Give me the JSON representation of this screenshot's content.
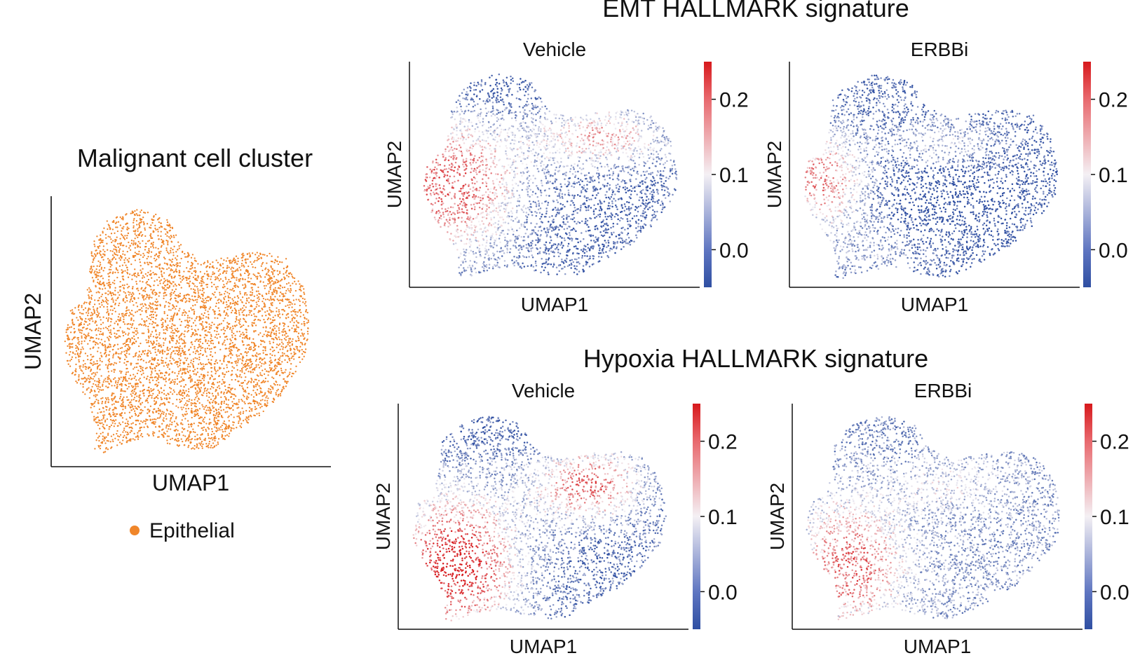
{
  "figure": {
    "left_panel": {
      "title": "Malignant cell cluster",
      "xlabel": "UMAP1",
      "ylabel": "UMAP2",
      "legend": [
        {
          "label": "Epithelial",
          "color": "#f0862a"
        }
      ]
    },
    "emt_title": "EMT HALLMARK signature",
    "hypoxia_title": "Hypoxia HALLMARK signature"
  },
  "chart_data": [
    {
      "type": "scatter",
      "title": "Malignant cell cluster",
      "xlabel": "UMAP1",
      "ylabel": "UMAP2",
      "color": "#f0862a",
      "legend": [
        "Epithelial"
      ],
      "grid": false
    },
    {
      "type": "scatter",
      "signature": "EMT HALLMARK signature",
      "title": "Vehicle",
      "xlabel": "UMAP1",
      "ylabel": "UMAP2",
      "colorbar": {
        "ticks": [
          "0.0",
          "0.1",
          "0.2"
        ],
        "range": [
          -0.05,
          0.25
        ],
        "cmap": [
          "#2f4fa2",
          "#ffffff",
          "#d7191c"
        ]
      },
      "pattern": "vehicle_emt"
    },
    {
      "type": "scatter",
      "signature": "EMT HALLMARK signature",
      "title": "ERBBi",
      "xlabel": "UMAP1",
      "ylabel": "UMAP2",
      "colorbar": {
        "ticks": [
          "0.0",
          "0.1",
          "0.2"
        ],
        "range": [
          -0.05,
          0.25
        ],
        "cmap": [
          "#2f4fa2",
          "#ffffff",
          "#d7191c"
        ]
      },
      "pattern": "erbbi_emt"
    },
    {
      "type": "scatter",
      "signature": "Hypoxia HALLMARK signature",
      "title": "Vehicle",
      "xlabel": "UMAP1",
      "ylabel": "UMAP2",
      "colorbar": {
        "ticks": [
          "0.0",
          "0.1",
          "0.2"
        ],
        "range": [
          -0.05,
          0.25
        ],
        "cmap": [
          "#2f4fa2",
          "#ffffff",
          "#d7191c"
        ]
      },
      "pattern": "vehicle_hyp"
    },
    {
      "type": "scatter",
      "signature": "Hypoxia HALLMARK signature",
      "title": "ERBBi",
      "xlabel": "UMAP1",
      "ylabel": "UMAP2",
      "colorbar": {
        "ticks": [
          "0.0",
          "0.1",
          "0.2"
        ],
        "range": [
          -0.05,
          0.25
        ],
        "cmap": [
          "#2f4fa2",
          "#ffffff",
          "#d7191c"
        ]
      },
      "pattern": "erbbi_hyp"
    }
  ]
}
